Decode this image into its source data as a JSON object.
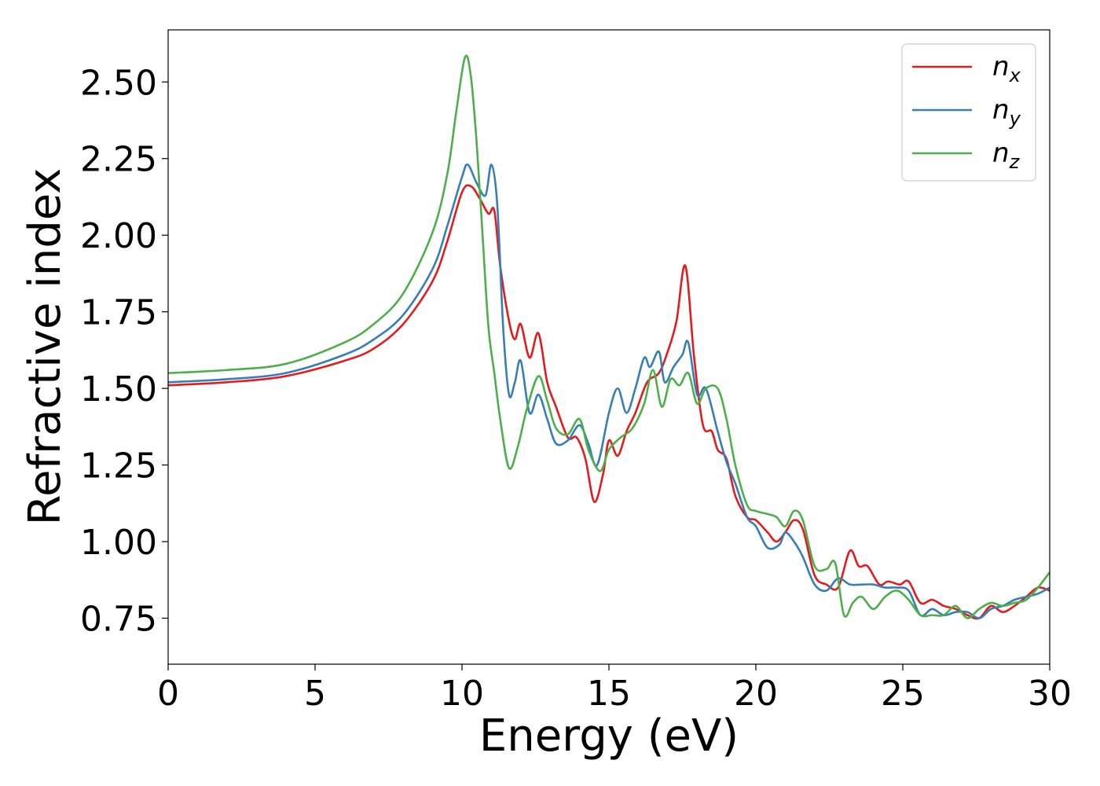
{
  "chart_data": {
    "type": "line",
    "title": "",
    "xlabel": "Energy (eV)",
    "ylabel": "Refractive index",
    "xlim": [
      0,
      30
    ],
    "ylim": [
      0.6,
      2.67
    ],
    "xticks": [
      0,
      5,
      10,
      15,
      20,
      25,
      30
    ],
    "xtick_labels": [
      "0",
      "5",
      "10",
      "15",
      "20",
      "25",
      "30"
    ],
    "yticks": [
      0.75,
      1.0,
      1.25,
      1.5,
      1.75,
      2.0,
      2.25,
      2.5
    ],
    "ytick_labels": [
      "0.75",
      "1.00",
      "1.25",
      "1.50",
      "1.75",
      "2.00",
      "2.25",
      "2.50"
    ],
    "grid": false,
    "legend_position": "top-right",
    "series": [
      {
        "name": "n_x",
        "base": "n",
        "sub": "x",
        "color": "#e41a1c",
        "points": [
          [
            0,
            1.51
          ],
          [
            2,
            1.52
          ],
          [
            4,
            1.54
          ],
          [
            6,
            1.59
          ],
          [
            7,
            1.63
          ],
          [
            8,
            1.71
          ],
          [
            9,
            1.85
          ],
          [
            9.5,
            1.98
          ],
          [
            10,
            2.14
          ],
          [
            10.3,
            2.16
          ],
          [
            10.6,
            2.12
          ],
          [
            10.9,
            2.07
          ],
          [
            11.1,
            2.08
          ],
          [
            11.3,
            1.9
          ],
          [
            11.6,
            1.72
          ],
          [
            11.8,
            1.66
          ],
          [
            12.0,
            1.71
          ],
          [
            12.3,
            1.6
          ],
          [
            12.6,
            1.68
          ],
          [
            12.9,
            1.52
          ],
          [
            13.2,
            1.44
          ],
          [
            13.6,
            1.34
          ],
          [
            13.9,
            1.34
          ],
          [
            14.2,
            1.27
          ],
          [
            14.5,
            1.13
          ],
          [
            14.8,
            1.22
          ],
          [
            15.0,
            1.33
          ],
          [
            15.3,
            1.28
          ],
          [
            15.6,
            1.36
          ],
          [
            15.9,
            1.42
          ],
          [
            16.3,
            1.52
          ],
          [
            16.7,
            1.55
          ],
          [
            17.0,
            1.62
          ],
          [
            17.3,
            1.72
          ],
          [
            17.6,
            1.9
          ],
          [
            17.9,
            1.6
          ],
          [
            18.2,
            1.38
          ],
          [
            18.5,
            1.36
          ],
          [
            18.7,
            1.3
          ],
          [
            19.0,
            1.27
          ],
          [
            19.3,
            1.15
          ],
          [
            19.7,
            1.08
          ],
          [
            20.0,
            1.07
          ],
          [
            20.4,
            1.03
          ],
          [
            20.7,
            1.0
          ],
          [
            21.0,
            1.03
          ],
          [
            21.3,
            1.07
          ],
          [
            21.6,
            1.04
          ],
          [
            22.0,
            0.89
          ],
          [
            22.4,
            0.86
          ],
          [
            22.8,
            0.85
          ],
          [
            23.2,
            0.97
          ],
          [
            23.5,
            0.92
          ],
          [
            23.8,
            0.92
          ],
          [
            24.2,
            0.86
          ],
          [
            24.5,
            0.87
          ],
          [
            24.9,
            0.86
          ],
          [
            25.2,
            0.87
          ],
          [
            25.6,
            0.8
          ],
          [
            26.0,
            0.81
          ],
          [
            26.4,
            0.79
          ],
          [
            26.8,
            0.78
          ],
          [
            27.2,
            0.76
          ],
          [
            27.6,
            0.75
          ],
          [
            28.0,
            0.79
          ],
          [
            28.4,
            0.77
          ],
          [
            28.8,
            0.79
          ],
          [
            29.2,
            0.82
          ],
          [
            29.6,
            0.85
          ],
          [
            30.0,
            0.84
          ]
        ]
      },
      {
        "name": "n_y",
        "base": "n",
        "sub": "y",
        "color": "#377eb8",
        "points": [
          [
            0,
            1.52
          ],
          [
            2,
            1.53
          ],
          [
            4,
            1.55
          ],
          [
            6,
            1.61
          ],
          [
            7,
            1.66
          ],
          [
            8,
            1.74
          ],
          [
            9,
            1.89
          ],
          [
            9.5,
            2.03
          ],
          [
            10,
            2.19
          ],
          [
            10.2,
            2.23
          ],
          [
            10.5,
            2.17
          ],
          [
            10.8,
            2.13
          ],
          [
            11.0,
            2.23
          ],
          [
            11.2,
            2.1
          ],
          [
            11.4,
            1.7
          ],
          [
            11.6,
            1.48
          ],
          [
            11.8,
            1.52
          ],
          [
            12.0,
            1.59
          ],
          [
            12.3,
            1.42
          ],
          [
            12.6,
            1.48
          ],
          [
            12.9,
            1.4
          ],
          [
            13.2,
            1.32
          ],
          [
            13.6,
            1.33
          ],
          [
            14.0,
            1.38
          ],
          [
            14.3,
            1.32
          ],
          [
            14.6,
            1.25
          ],
          [
            15.0,
            1.42
          ],
          [
            15.3,
            1.5
          ],
          [
            15.6,
            1.42
          ],
          [
            15.9,
            1.5
          ],
          [
            16.2,
            1.6
          ],
          [
            16.4,
            1.57
          ],
          [
            16.7,
            1.62
          ],
          [
            16.9,
            1.52
          ],
          [
            17.2,
            1.57
          ],
          [
            17.5,
            1.61
          ],
          [
            17.7,
            1.65
          ],
          [
            18.0,
            1.48
          ],
          [
            18.3,
            1.5
          ],
          [
            18.7,
            1.36
          ],
          [
            19.0,
            1.26
          ],
          [
            19.3,
            1.19
          ],
          [
            19.7,
            1.08
          ],
          [
            20.0,
            1.05
          ],
          [
            20.4,
            0.98
          ],
          [
            20.8,
            0.99
          ],
          [
            21.0,
            1.03
          ],
          [
            21.3,
            1.0
          ],
          [
            21.6,
            0.95
          ],
          [
            22.0,
            0.86
          ],
          [
            22.4,
            0.84
          ],
          [
            22.8,
            0.88
          ],
          [
            23.2,
            0.86
          ],
          [
            23.6,
            0.86
          ],
          [
            24.0,
            0.86
          ],
          [
            24.4,
            0.85
          ],
          [
            24.8,
            0.85
          ],
          [
            25.2,
            0.84
          ],
          [
            25.6,
            0.76
          ],
          [
            26.0,
            0.78
          ],
          [
            26.4,
            0.76
          ],
          [
            26.8,
            0.77
          ],
          [
            27.2,
            0.77
          ],
          [
            27.6,
            0.75
          ],
          [
            28.0,
            0.78
          ],
          [
            28.4,
            0.79
          ],
          [
            28.8,
            0.81
          ],
          [
            29.2,
            0.82
          ],
          [
            29.6,
            0.83
          ],
          [
            30.0,
            0.85
          ]
        ]
      },
      {
        "name": "n_z",
        "base": "n",
        "sub": "z",
        "color": "#4daf4a",
        "points": [
          [
            0,
            1.55
          ],
          [
            2,
            1.56
          ],
          [
            4,
            1.58
          ],
          [
            6,
            1.65
          ],
          [
            7,
            1.71
          ],
          [
            8,
            1.81
          ],
          [
            9,
            2.01
          ],
          [
            9.5,
            2.2
          ],
          [
            9.8,
            2.4
          ],
          [
            10.1,
            2.58
          ],
          [
            10.3,
            2.52
          ],
          [
            10.5,
            2.3
          ],
          [
            10.7,
            2.0
          ],
          [
            10.9,
            1.7
          ],
          [
            11.1,
            1.55
          ],
          [
            11.3,
            1.4
          ],
          [
            11.6,
            1.24
          ],
          [
            11.9,
            1.31
          ],
          [
            12.2,
            1.43
          ],
          [
            12.6,
            1.54
          ],
          [
            12.9,
            1.46
          ],
          [
            13.2,
            1.37
          ],
          [
            13.6,
            1.35
          ],
          [
            14.0,
            1.4
          ],
          [
            14.3,
            1.3
          ],
          [
            14.7,
            1.23
          ],
          [
            15.0,
            1.3
          ],
          [
            15.4,
            1.34
          ],
          [
            15.8,
            1.37
          ],
          [
            16.2,
            1.45
          ],
          [
            16.5,
            1.56
          ],
          [
            16.8,
            1.44
          ],
          [
            17.1,
            1.53
          ],
          [
            17.4,
            1.51
          ],
          [
            17.7,
            1.55
          ],
          [
            18.0,
            1.45
          ],
          [
            18.3,
            1.5
          ],
          [
            18.7,
            1.5
          ],
          [
            19.0,
            1.4
          ],
          [
            19.3,
            1.25
          ],
          [
            19.7,
            1.12
          ],
          [
            20.0,
            1.1
          ],
          [
            20.4,
            1.09
          ],
          [
            20.7,
            1.08
          ],
          [
            21.0,
            1.05
          ],
          [
            21.3,
            1.1
          ],
          [
            21.6,
            1.07
          ],
          [
            22.0,
            0.92
          ],
          [
            22.4,
            0.91
          ],
          [
            22.7,
            0.93
          ],
          [
            23.0,
            0.76
          ],
          [
            23.3,
            0.8
          ],
          [
            23.6,
            0.82
          ],
          [
            24.0,
            0.78
          ],
          [
            24.4,
            0.82
          ],
          [
            24.8,
            0.84
          ],
          [
            25.2,
            0.81
          ],
          [
            25.6,
            0.76
          ],
          [
            26.0,
            0.76
          ],
          [
            26.4,
            0.76
          ],
          [
            26.8,
            0.79
          ],
          [
            27.2,
            0.75
          ],
          [
            27.6,
            0.78
          ],
          [
            28.0,
            0.8
          ],
          [
            28.4,
            0.79
          ],
          [
            28.8,
            0.8
          ],
          [
            29.2,
            0.81
          ],
          [
            29.6,
            0.85
          ],
          [
            30.0,
            0.9
          ]
        ]
      }
    ]
  }
}
